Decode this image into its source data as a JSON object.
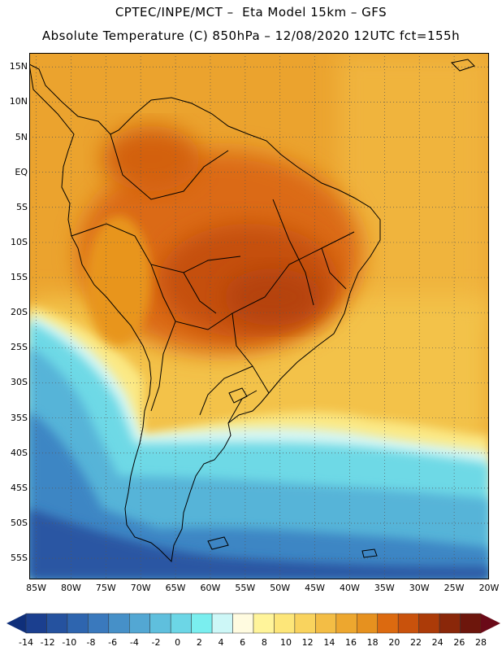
{
  "header": {
    "line1": "CPTEC/INPE/MCT –  Eta Model 15km – GFS",
    "line2": "Absolute Temperature (C) 850hPa – 12/08/2020 12UTC fct=155h"
  },
  "map": {
    "lon_range": [
      -86,
      -20
    ],
    "lat_range": [
      -58,
      17
    ],
    "x_ticks": [
      {
        "lon": -85,
        "label": "85W"
      },
      {
        "lon": -80,
        "label": "80W"
      },
      {
        "lon": -75,
        "label": "75W"
      },
      {
        "lon": -70,
        "label": "70W"
      },
      {
        "lon": -65,
        "label": "65W"
      },
      {
        "lon": -60,
        "label": "60W"
      },
      {
        "lon": -55,
        "label": "55W"
      },
      {
        "lon": -50,
        "label": "50W"
      },
      {
        "lon": -45,
        "label": "45W"
      },
      {
        "lon": -40,
        "label": "40W"
      },
      {
        "lon": -35,
        "label": "35W"
      },
      {
        "lon": -30,
        "label": "30W"
      },
      {
        "lon": -25,
        "label": "25W"
      },
      {
        "lon": -20,
        "label": "20W"
      }
    ],
    "y_ticks": [
      {
        "lat": 15,
        "label": "15N"
      },
      {
        "lat": 10,
        "label": "10N"
      },
      {
        "lat": 5,
        "label": "5N"
      },
      {
        "lat": 0,
        "label": "EQ"
      },
      {
        "lat": -5,
        "label": "5S"
      },
      {
        "lat": -10,
        "label": "10S"
      },
      {
        "lat": -15,
        "label": "15S"
      },
      {
        "lat": -20,
        "label": "20S"
      },
      {
        "lat": -25,
        "label": "25S"
      },
      {
        "lat": -30,
        "label": "30S"
      },
      {
        "lat": -35,
        "label": "35S"
      },
      {
        "lat": -40,
        "label": "40S"
      },
      {
        "lat": -45,
        "label": "45S"
      },
      {
        "lat": -50,
        "label": "50S"
      },
      {
        "lat": -55,
        "label": "55S"
      }
    ],
    "grid": true
  },
  "colorbar": {
    "labels": [
      "-14",
      "-12",
      "-10",
      "-8",
      "-6",
      "-4",
      "-2",
      "0",
      "2",
      "4",
      "6",
      "8",
      "10",
      "12",
      "14",
      "16",
      "18",
      "20",
      "22",
      "24",
      "26",
      "28"
    ],
    "under_color": "#0f2f7a",
    "over_color": "#6a0a18",
    "colors": [
      "#1b3f8f",
      "#25529f",
      "#2e65af",
      "#3a79bd",
      "#4690c8",
      "#53a7d3",
      "#5fbfdd",
      "#6cd6e6",
      "#7aeeef",
      "#cdf7f7",
      "#fffbe0",
      "#fff49a",
      "#fde679",
      "#f9d35e",
      "#f3bd45",
      "#eda72f",
      "#e6911f",
      "#dc6a10",
      "#c9520c",
      "#ac3b08",
      "#8a2709",
      "#6d160c"
    ]
  }
}
